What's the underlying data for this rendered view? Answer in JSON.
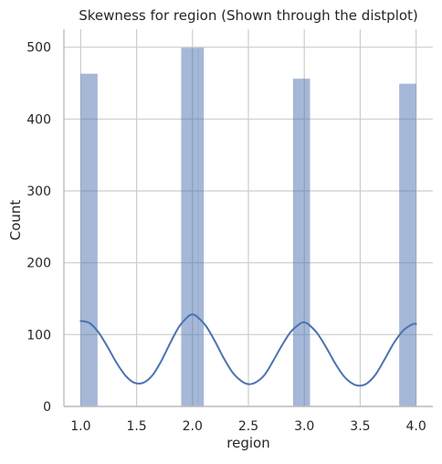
{
  "chart_data": {
    "type": "bar",
    "title": "Skewness for region (Shown through the distplot)",
    "xlabel": "region",
    "ylabel": "Count",
    "xlim": [
      0.85,
      4.15
    ],
    "ylim": [
      0,
      525
    ],
    "x_ticks": [
      "1.0",
      "1.5",
      "2.0",
      "2.5",
      "3.0",
      "3.5",
      "4.0"
    ],
    "y_ticks": [
      "0",
      "100",
      "200",
      "300",
      "400",
      "500"
    ],
    "grid": true,
    "bins": [
      {
        "x0": 1.0,
        "x1": 1.15,
        "value": 463
      },
      {
        "x0": 1.9,
        "x1": 2.05,
        "value": 499
      },
      {
        "x0": 2.05,
        "x1": 2.1,
        "value": 499
      },
      {
        "x0": 2.9,
        "x1": 3.05,
        "value": 456
      },
      {
        "x0": 3.85,
        "x1": 4.0,
        "value": 449
      }
    ],
    "kde": {
      "x": [
        1.0,
        1.08,
        1.16,
        1.24,
        1.32,
        1.4,
        1.48,
        1.56,
        1.64,
        1.72,
        1.8,
        1.88,
        1.96,
        2.0,
        2.04,
        2.12,
        2.2,
        2.28,
        2.36,
        2.44,
        2.5,
        2.56,
        2.64,
        2.72,
        2.8,
        2.88,
        2.96,
        3.0,
        3.04,
        3.12,
        3.2,
        3.28,
        3.36,
        3.44,
        3.5,
        3.56,
        3.64,
        3.72,
        3.8,
        3.88,
        3.96,
        4.0
      ],
      "y": [
        119,
        116,
        103,
        83,
        61,
        43,
        33,
        33,
        43,
        63,
        88,
        111,
        125,
        128,
        125,
        112,
        91,
        67,
        47,
        35,
        31,
        33,
        43,
        63,
        85,
        104,
        115,
        117,
        114,
        101,
        81,
        59,
        41,
        31,
        29,
        32,
        45,
        66,
        88,
        105,
        114,
        115
      ]
    },
    "colors": {
      "bar": "#4c72b0",
      "bar_opacity": 0.5,
      "line": "#4c72b0",
      "grid": "#cccccc",
      "axis": "#bdbdbd"
    }
  }
}
